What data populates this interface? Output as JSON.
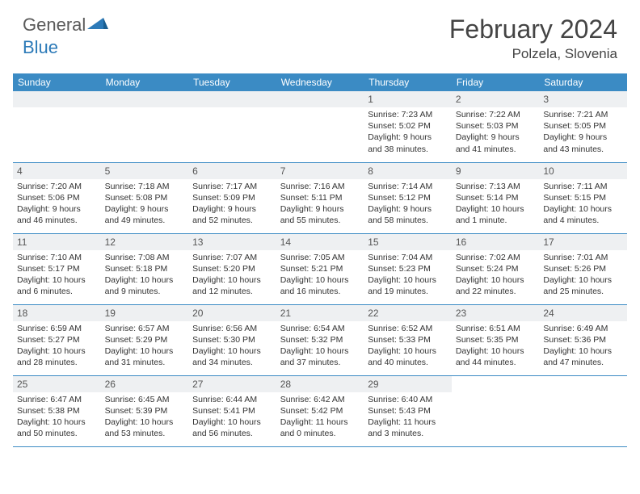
{
  "brand": {
    "name1": "General",
    "name2": "Blue"
  },
  "title": "February 2024",
  "location": "Polzela, Slovenia",
  "colors": {
    "header_bg": "#3b8bc4",
    "header_text": "#ffffff",
    "daynum_bg": "#eef0f2",
    "border": "#3b8bc4",
    "text": "#333333",
    "brand_grey": "#5a5a5a",
    "brand_blue": "#2c7ab8"
  },
  "dayNames": [
    "Sunday",
    "Monday",
    "Tuesday",
    "Wednesday",
    "Thursday",
    "Friday",
    "Saturday"
  ],
  "weeks": [
    [
      null,
      null,
      null,
      null,
      {
        "n": "1",
        "sr": "7:23 AM",
        "ss": "5:02 PM",
        "dl": "9 hours and 38 minutes."
      },
      {
        "n": "2",
        "sr": "7:22 AM",
        "ss": "5:03 PM",
        "dl": "9 hours and 41 minutes."
      },
      {
        "n": "3",
        "sr": "7:21 AM",
        "ss": "5:05 PM",
        "dl": "9 hours and 43 minutes."
      }
    ],
    [
      {
        "n": "4",
        "sr": "7:20 AM",
        "ss": "5:06 PM",
        "dl": "9 hours and 46 minutes."
      },
      {
        "n": "5",
        "sr": "7:18 AM",
        "ss": "5:08 PM",
        "dl": "9 hours and 49 minutes."
      },
      {
        "n": "6",
        "sr": "7:17 AM",
        "ss": "5:09 PM",
        "dl": "9 hours and 52 minutes."
      },
      {
        "n": "7",
        "sr": "7:16 AM",
        "ss": "5:11 PM",
        "dl": "9 hours and 55 minutes."
      },
      {
        "n": "8",
        "sr": "7:14 AM",
        "ss": "5:12 PM",
        "dl": "9 hours and 58 minutes."
      },
      {
        "n": "9",
        "sr": "7:13 AM",
        "ss": "5:14 PM",
        "dl": "10 hours and 1 minute."
      },
      {
        "n": "10",
        "sr": "7:11 AM",
        "ss": "5:15 PM",
        "dl": "10 hours and 4 minutes."
      }
    ],
    [
      {
        "n": "11",
        "sr": "7:10 AM",
        "ss": "5:17 PM",
        "dl": "10 hours and 6 minutes."
      },
      {
        "n": "12",
        "sr": "7:08 AM",
        "ss": "5:18 PM",
        "dl": "10 hours and 9 minutes."
      },
      {
        "n": "13",
        "sr": "7:07 AM",
        "ss": "5:20 PM",
        "dl": "10 hours and 12 minutes."
      },
      {
        "n": "14",
        "sr": "7:05 AM",
        "ss": "5:21 PM",
        "dl": "10 hours and 16 minutes."
      },
      {
        "n": "15",
        "sr": "7:04 AM",
        "ss": "5:23 PM",
        "dl": "10 hours and 19 minutes."
      },
      {
        "n": "16",
        "sr": "7:02 AM",
        "ss": "5:24 PM",
        "dl": "10 hours and 22 minutes."
      },
      {
        "n": "17",
        "sr": "7:01 AM",
        "ss": "5:26 PM",
        "dl": "10 hours and 25 minutes."
      }
    ],
    [
      {
        "n": "18",
        "sr": "6:59 AM",
        "ss": "5:27 PM",
        "dl": "10 hours and 28 minutes."
      },
      {
        "n": "19",
        "sr": "6:57 AM",
        "ss": "5:29 PM",
        "dl": "10 hours and 31 minutes."
      },
      {
        "n": "20",
        "sr": "6:56 AM",
        "ss": "5:30 PM",
        "dl": "10 hours and 34 minutes."
      },
      {
        "n": "21",
        "sr": "6:54 AM",
        "ss": "5:32 PM",
        "dl": "10 hours and 37 minutes."
      },
      {
        "n": "22",
        "sr": "6:52 AM",
        "ss": "5:33 PM",
        "dl": "10 hours and 40 minutes."
      },
      {
        "n": "23",
        "sr": "6:51 AM",
        "ss": "5:35 PM",
        "dl": "10 hours and 44 minutes."
      },
      {
        "n": "24",
        "sr": "6:49 AM",
        "ss": "5:36 PM",
        "dl": "10 hours and 47 minutes."
      }
    ],
    [
      {
        "n": "25",
        "sr": "6:47 AM",
        "ss": "5:38 PM",
        "dl": "10 hours and 50 minutes."
      },
      {
        "n": "26",
        "sr": "6:45 AM",
        "ss": "5:39 PM",
        "dl": "10 hours and 53 minutes."
      },
      {
        "n": "27",
        "sr": "6:44 AM",
        "ss": "5:41 PM",
        "dl": "10 hours and 56 minutes."
      },
      {
        "n": "28",
        "sr": "6:42 AM",
        "ss": "5:42 PM",
        "dl": "11 hours and 0 minutes."
      },
      {
        "n": "29",
        "sr": "6:40 AM",
        "ss": "5:43 PM",
        "dl": "11 hours and 3 minutes."
      },
      null,
      null
    ]
  ],
  "labels": {
    "sunrise": "Sunrise: ",
    "sunset": "Sunset: ",
    "daylight": "Daylight: "
  }
}
